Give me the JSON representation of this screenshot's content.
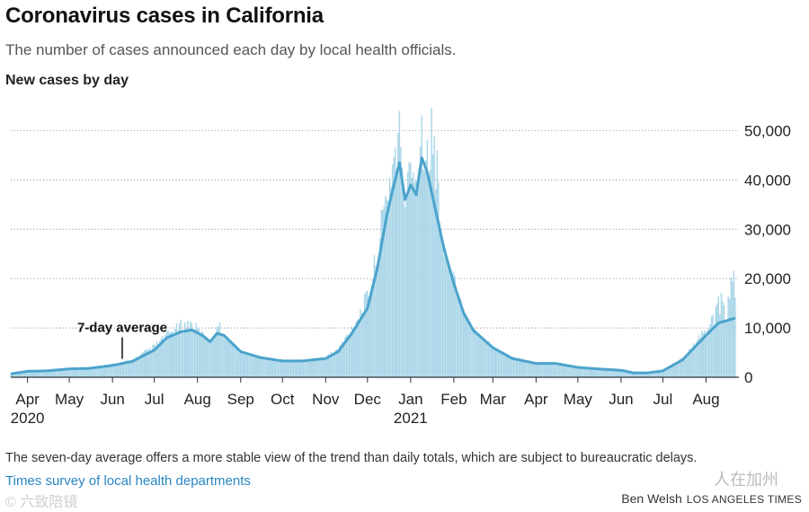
{
  "header": {
    "title": "Coronavirus cases in California",
    "subtitle": "The number of cases announced each day by local health officials.",
    "section_label": "New cases by day"
  },
  "footer": {
    "note": "The seven-day average offers a more stable view of the trend than daily totals, which are subject to bureaucratic delays.",
    "source": "Times survey of local health departments",
    "author": "Ben Welsh",
    "publication": "LOS ANGELES TIMES"
  },
  "watermarks": {
    "left": "© 六致陪镜",
    "right": "人在加州"
  },
  "colors": {
    "bars": "#a8d5e8",
    "line": "#4ba3cc",
    "grid": "#999999",
    "text": "#222222",
    "link": "#2a86c4"
  },
  "chart_data": {
    "type": "bar",
    "title": "New cases by day",
    "ylabel": "",
    "xlabel": "",
    "ylim": [
      0,
      55000
    ],
    "yticks": [
      0,
      10000,
      20000,
      30000,
      40000,
      50000
    ],
    "ytick_labels": [
      "0",
      "10,000",
      "20,000",
      "30,000",
      "40,000",
      "50,000"
    ],
    "xtick_labels": [
      "Apr",
      "May",
      "Jun",
      "Jul",
      "Aug",
      "Sep",
      "Oct",
      "Nov",
      "Dec",
      "Jan",
      "Feb",
      "Mar",
      "Apr",
      "May",
      "Jun",
      "Jul",
      "Aug"
    ],
    "year_labels": [
      {
        "label": "2020",
        "month_index": 0
      },
      {
        "label": "2021",
        "month_index": 9
      }
    ],
    "grid": true,
    "annotation": {
      "label": "7-day average",
      "x": "2020-06-08",
      "value": 3000
    },
    "x_start": "2020-03-20",
    "x_end": "2021-08-22",
    "series": [
      {
        "name": "7-day average",
        "type": "line",
        "points": [
          [
            "2020-03-20",
            700
          ],
          [
            "2020-04-01",
            1200
          ],
          [
            "2020-04-15",
            1300
          ],
          [
            "2020-05-01",
            1700
          ],
          [
            "2020-05-15",
            1800
          ],
          [
            "2020-06-01",
            2400
          ],
          [
            "2020-06-15",
            3200
          ],
          [
            "2020-07-01",
            5500
          ],
          [
            "2020-07-10",
            8000
          ],
          [
            "2020-07-20",
            9200
          ],
          [
            "2020-07-28",
            9600
          ],
          [
            "2020-08-05",
            8400
          ],
          [
            "2020-08-10",
            7200
          ],
          [
            "2020-08-15",
            8900
          ],
          [
            "2020-08-20",
            8500
          ],
          [
            "2020-09-01",
            5200
          ],
          [
            "2020-09-15",
            4000
          ],
          [
            "2020-10-01",
            3300
          ],
          [
            "2020-10-15",
            3300
          ],
          [
            "2020-11-01",
            3800
          ],
          [
            "2020-11-10",
            5200
          ],
          [
            "2020-11-20",
            9000
          ],
          [
            "2020-12-01",
            14000
          ],
          [
            "2020-12-08",
            22000
          ],
          [
            "2020-12-15",
            33000
          ],
          [
            "2020-12-20",
            39000
          ],
          [
            "2020-12-24",
            43500
          ],
          [
            "2020-12-28",
            36000
          ],
          [
            "2021-01-01",
            39000
          ],
          [
            "2021-01-05",
            37000
          ],
          [
            "2021-01-09",
            44500
          ],
          [
            "2021-01-13",
            41500
          ],
          [
            "2021-01-18",
            35000
          ],
          [
            "2021-01-25",
            26000
          ],
          [
            "2021-02-01",
            19000
          ],
          [
            "2021-02-08",
            13000
          ],
          [
            "2021-02-15",
            9500
          ],
          [
            "2021-03-01",
            6000
          ],
          [
            "2021-03-15",
            3800
          ],
          [
            "2021-04-01",
            2800
          ],
          [
            "2021-04-15",
            2800
          ],
          [
            "2021-05-01",
            2000
          ],
          [
            "2021-05-15",
            1700
          ],
          [
            "2021-06-01",
            1400
          ],
          [
            "2021-06-10",
            900
          ],
          [
            "2021-06-20",
            900
          ],
          [
            "2021-07-01",
            1300
          ],
          [
            "2021-07-15",
            3500
          ],
          [
            "2021-08-01",
            8500
          ],
          [
            "2021-08-10",
            11000
          ],
          [
            "2021-08-22",
            12000
          ]
        ]
      },
      {
        "name": "Daily new cases",
        "type": "bar",
        "note": "Daily values estimated from the figure; roughly the 7-day average with day-to-day noise.",
        "points": [
          [
            "2020-03-20",
            600
          ],
          [
            "2020-04-01",
            1300
          ],
          [
            "2020-04-15",
            1400
          ],
          [
            "2020-05-01",
            1900
          ],
          [
            "2020-05-15",
            2000
          ],
          [
            "2020-06-01",
            2700
          ],
          [
            "2020-06-15",
            3600
          ],
          [
            "2020-07-01",
            6500
          ],
          [
            "2020-07-10",
            9000
          ],
          [
            "2020-07-20",
            11000
          ],
          [
            "2020-07-28",
            11500
          ],
          [
            "2020-08-05",
            9000
          ],
          [
            "2020-08-10",
            6500
          ],
          [
            "2020-08-15",
            12000
          ],
          [
            "2020-08-20",
            8500
          ],
          [
            "2020-09-01",
            5500
          ],
          [
            "2020-09-15",
            4200
          ],
          [
            "2020-10-01",
            3600
          ],
          [
            "2020-10-15",
            3500
          ],
          [
            "2020-11-01",
            4200
          ],
          [
            "2020-11-10",
            6000
          ],
          [
            "2020-11-20",
            10500
          ],
          [
            "2020-12-01",
            17000
          ],
          [
            "2020-12-08",
            26000
          ],
          [
            "2020-12-15",
            40000
          ],
          [
            "2020-12-20",
            48000
          ],
          [
            "2020-12-24",
            54000
          ],
          [
            "2020-12-28",
            30000
          ],
          [
            "2021-01-01",
            52000
          ],
          [
            "2021-01-05",
            42000
          ],
          [
            "2021-01-09",
            54000
          ],
          [
            "2021-01-13",
            47000
          ],
          [
            "2021-01-18",
            54500
          ],
          [
            "2021-01-25",
            23000
          ],
          [
            "2021-02-01",
            21000
          ],
          [
            "2021-02-08",
            14000
          ],
          [
            "2021-02-15",
            10000
          ],
          [
            "2021-03-01",
            6500
          ],
          [
            "2021-03-15",
            4200
          ],
          [
            "2021-04-01",
            3000
          ],
          [
            "2021-04-15",
            3100
          ],
          [
            "2021-05-01",
            2200
          ],
          [
            "2021-05-15",
            1800
          ],
          [
            "2021-06-01",
            1500
          ],
          [
            "2021-06-10",
            1000
          ],
          [
            "2021-06-20",
            1000
          ],
          [
            "2021-07-01",
            1500
          ],
          [
            "2021-07-15",
            4000
          ],
          [
            "2021-08-01",
            10000
          ],
          [
            "2021-08-10",
            15000
          ],
          [
            "2021-08-22",
            20000
          ]
        ]
      }
    ]
  }
}
